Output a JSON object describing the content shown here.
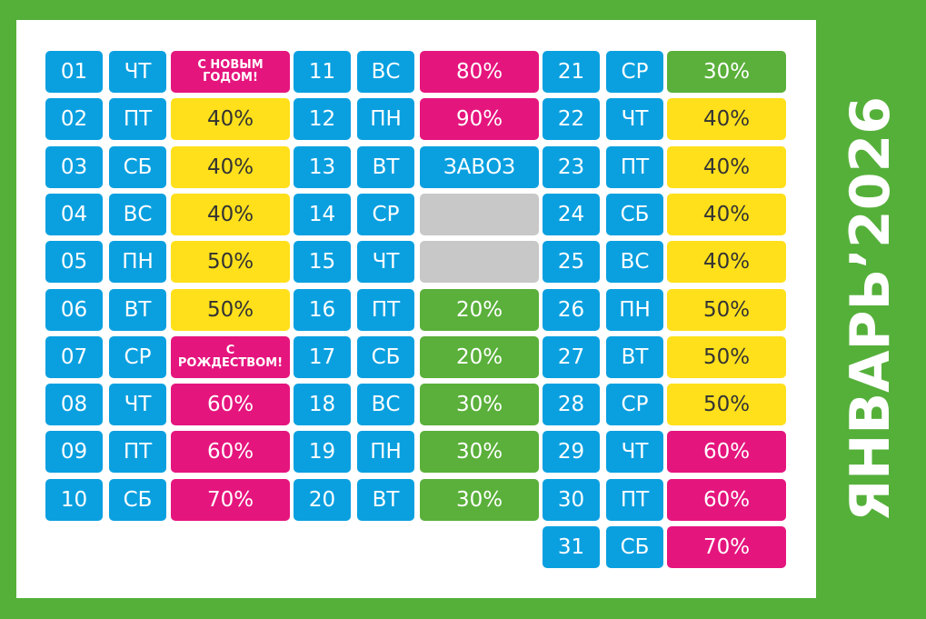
{
  "title": "ЯНВАРЬ’2026",
  "columns": [
    [
      {
        "day": "01",
        "weekday": "ЧТ",
        "label": "С НОВЫМ ГОДОМ!",
        "color": "pink"
      },
      {
        "day": "02",
        "weekday": "ПТ",
        "label": "40%",
        "color": "yellow"
      },
      {
        "day": "03",
        "weekday": "СБ",
        "label": "40%",
        "color": "yellow"
      },
      {
        "day": "04",
        "weekday": "ВС",
        "label": "40%",
        "color": "yellow"
      },
      {
        "day": "05",
        "weekday": "ПН",
        "label": "50%",
        "color": "yellow"
      },
      {
        "day": "06",
        "weekday": "ВТ",
        "label": "50%",
        "color": "yellow"
      },
      {
        "day": "07",
        "weekday": "СР",
        "label": "С РОЖДЕСТВОМ!",
        "color": "pink"
      },
      {
        "day": "08",
        "weekday": "ЧТ",
        "label": "60%",
        "color": "pink"
      },
      {
        "day": "09",
        "weekday": "ПТ",
        "label": "60%",
        "color": "pink"
      },
      {
        "day": "10",
        "weekday": "СБ",
        "label": "70%",
        "color": "pink"
      }
    ],
    [
      {
        "day": "11",
        "weekday": "ВС",
        "label": "80%",
        "color": "pink"
      },
      {
        "day": "12",
        "weekday": "ПН",
        "label": "90%",
        "color": "pink"
      },
      {
        "day": "13",
        "weekday": "ВТ",
        "label": "ЗАВОЗ",
        "color": "blue"
      },
      {
        "day": "14",
        "weekday": "СР",
        "color": "gray"
      },
      {
        "day": "15",
        "weekday": "ЧТ",
        "color": "gray"
      },
      {
        "day": "16",
        "weekday": "ПТ",
        "label": "20%",
        "color": "green"
      },
      {
        "day": "17",
        "weekday": "СБ",
        "label": "20%",
        "color": "green"
      },
      {
        "day": "18",
        "weekday": "ВС",
        "label": "30%",
        "color": "green"
      },
      {
        "day": "19",
        "weekday": "ПН",
        "label": "30%",
        "color": "green"
      },
      {
        "day": "20",
        "weekday": "ВТ",
        "label": "30%",
        "color": "green"
      }
    ],
    [
      {
        "day": "21",
        "weekday": "СР",
        "label": "30%",
        "color": "green"
      },
      {
        "day": "22",
        "weekday": "ЧТ",
        "label": "40%",
        "color": "yellow"
      },
      {
        "day": "23",
        "weekday": "ПТ",
        "label": "40%",
        "color": "yellow"
      },
      {
        "day": "24",
        "weekday": "СБ",
        "label": "40%",
        "color": "yellow"
      },
      {
        "day": "25",
        "weekday": "ВС",
        "label": "40%",
        "color": "yellow"
      },
      {
        "day": "26",
        "weekday": "ПН",
        "label": "50%",
        "color": "yellow"
      },
      {
        "day": "27",
        "weekday": "ВТ",
        "label": "50%",
        "color": "yellow"
      },
      {
        "day": "28",
        "weekday": "СР",
        "label": "50%",
        "color": "yellow"
      },
      {
        "day": "29",
        "weekday": "ЧТ",
        "label": "60%",
        "color": "pink"
      },
      {
        "day": "30",
        "weekday": "ПТ",
        "label": "60%",
        "color": "pink"
      },
      {
        "day": "31",
        "weekday": "СБ",
        "label": "70%",
        "color": "pink"
      }
    ]
  ]
}
